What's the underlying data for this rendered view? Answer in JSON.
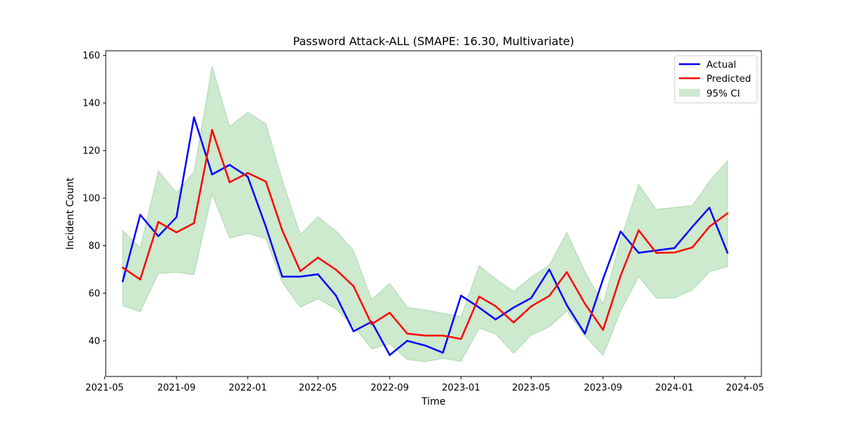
{
  "chart_data": {
    "type": "line",
    "title": "Password Attack-ALL (SMAPE: 16.30, Multivariate)",
    "xlabel": "Time",
    "ylabel": "Incident Count",
    "xlim": [
      "2021-05-03",
      "2024-05-29"
    ],
    "ylim": [
      25,
      162
    ],
    "x_ticks": [
      "2021-05",
      "2021-09",
      "2022-01",
      "2022-05",
      "2022-09",
      "2023-01",
      "2023-05",
      "2023-09",
      "2024-01",
      "2024-05"
    ],
    "y_ticks": [
      40,
      60,
      80,
      100,
      120,
      140,
      160
    ],
    "grid": false,
    "legend_position": "top-right",
    "x": [
      "2021-06-01",
      "2021-07-01",
      "2021-08-01",
      "2021-09-01",
      "2021-10-01",
      "2021-11-01",
      "2021-12-01",
      "2022-01-01",
      "2022-02-01",
      "2022-03-01",
      "2022-04-01",
      "2022-05-01",
      "2022-06-01",
      "2022-07-01",
      "2022-08-01",
      "2022-09-01",
      "2022-10-01",
      "2022-11-01",
      "2022-12-01",
      "2023-01-01",
      "2023-02-01",
      "2023-03-01",
      "2023-04-01",
      "2023-05-01",
      "2023-06-01",
      "2023-07-01",
      "2023-08-01",
      "2023-09-01",
      "2023-10-01",
      "2023-11-01",
      "2023-12-01",
      "2024-01-01",
      "2024-02-01",
      "2024-03-01",
      "2024-04-01"
    ],
    "series": [
      {
        "name": "Actual",
        "color": "#0000ff",
        "values": [
          65,
          93,
          84,
          92,
          134,
          110,
          114,
          109,
          88,
          67,
          67,
          68,
          59,
          44,
          48,
          34,
          40,
          38,
          35,
          59,
          54,
          49,
          54,
          58,
          70,
          55,
          43,
          66,
          86,
          77,
          78,
          79,
          88,
          96,
          77
        ]
      },
      {
        "name": "Predicted",
        "color": "#ff0000",
        "values": [
          70.8,
          65.8,
          90,
          85.6,
          89.5,
          128.7,
          106.7,
          110.6,
          107,
          86.5,
          69.3,
          75,
          69.9,
          63,
          47,
          51.8,
          43,
          42.2,
          42.2,
          40.8,
          58.6,
          54.6,
          47.7,
          54.5,
          58.9,
          68.9,
          55.6,
          44.6,
          67.3,
          86.5,
          77,
          77.1,
          79.3,
          88,
          93.6
        ]
      }
    ],
    "ci": {
      "name": "95% CI",
      "color": "#4caf50",
      "lower": [
        54.8,
        52.2,
        68.3,
        68.8,
        67.8,
        101.6,
        83.1,
        85.2,
        82.9,
        64.6,
        54.1,
        57.7,
        53.3,
        46.3,
        36.6,
        38.7,
        32.1,
        31.2,
        32.6,
        31.3,
        45.3,
        42.9,
        34.7,
        42.4,
        45.8,
        52.5,
        42.1,
        33.8,
        52.4,
        67,
        57.9,
        58,
        61.4,
        69,
        71.2
      ],
      "upper": [
        86.4,
        79.2,
        111.4,
        102.3,
        111.1,
        155.5,
        130.1,
        136.2,
        131.3,
        107.7,
        84.7,
        92.2,
        86.2,
        78,
        57.4,
        64.2,
        54.1,
        53,
        51.6,
        50.2,
        71.6,
        66.1,
        60.8,
        66.8,
        71.9,
        85.6,
        69.1,
        55.5,
        82.4,
        105.8,
        95.3,
        96.1,
        96.9,
        107.1,
        115.8
      ]
    }
  }
}
